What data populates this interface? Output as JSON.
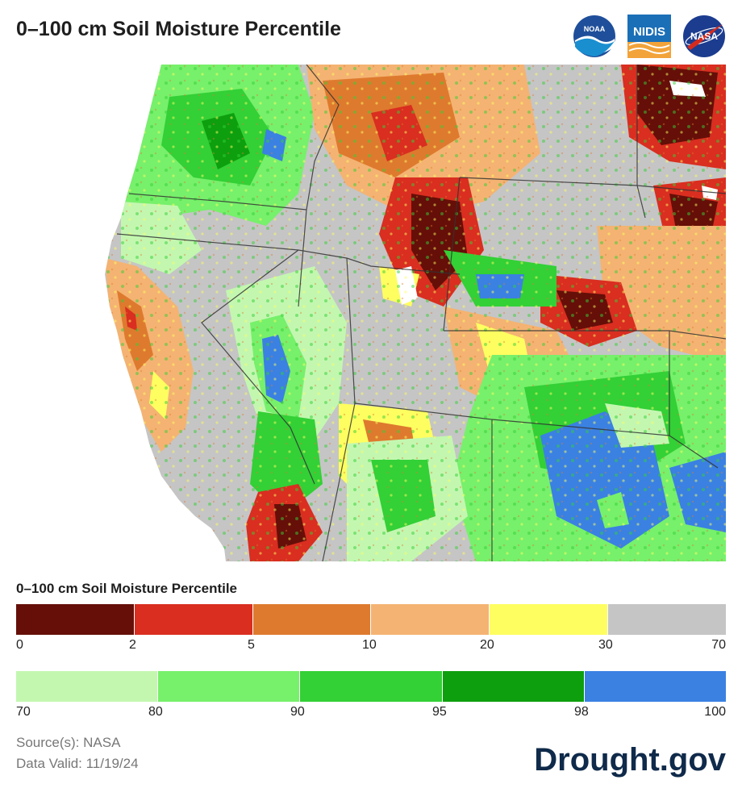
{
  "header": {
    "title": "0–100 cm Soil Moisture Percentile",
    "logos": [
      {
        "name": "noaa-logo",
        "text": "NOAA"
      },
      {
        "name": "nidis-logo",
        "text": "NIDIS"
      },
      {
        "name": "nasa-logo",
        "text": "NASA"
      }
    ]
  },
  "legend": {
    "title": "0–100 cm Soil Moisture Percentile",
    "row1": {
      "colors": [
        "#650f08",
        "#d92e20",
        "#de7a2e",
        "#f4b372",
        "#fefe60",
        "#c5c5c5"
      ],
      "ticks": [
        "0",
        "2",
        "5",
        "10",
        "20",
        "30",
        "70"
      ]
    },
    "row2": {
      "colors": [
        "#c3f7b0",
        "#77f06b",
        "#33d036",
        "#0d9f0e",
        "#3a81e2"
      ],
      "ticks": [
        "70",
        "80",
        "90",
        "95",
        "98",
        "100"
      ]
    }
  },
  "footer": {
    "source": "Source(s): NASA",
    "valid": "Data Valid: 11/19/24",
    "brand": "Drought.gov"
  }
}
